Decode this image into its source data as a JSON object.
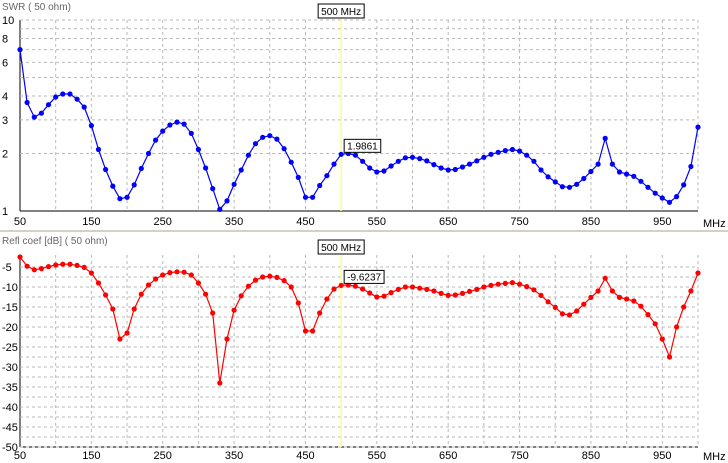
{
  "marker": {
    "label": "500 MHz",
    "x": 500
  },
  "x_unit": "MHz",
  "chart_data": [
    {
      "type": "line",
      "title": "SWR ( 50 ohm)",
      "xlim": [
        50,
        1000
      ],
      "ylim": [
        1,
        10
      ],
      "y_scale": "log",
      "grid": true,
      "color": "#0000ff",
      "x_ticks": [
        50,
        150,
        250,
        350,
        450,
        550,
        650,
        750,
        850,
        950
      ],
      "x_tick_labels": [
        "50",
        "150",
        "250",
        "350",
        "450",
        "550",
        "650",
        "750",
        "850",
        "950"
      ],
      "y_ticks": [
        1,
        2,
        3,
        4,
        6,
        8,
        10
      ],
      "y_tick_labels": [
        "1",
        "2",
        "3",
        "4",
        "6",
        "8",
        "10"
      ],
      "marker_value": "1.9861",
      "x": [
        50,
        60,
        70,
        80,
        90,
        100,
        110,
        120,
        130,
        140,
        150,
        160,
        170,
        180,
        190,
        200,
        210,
        220,
        230,
        240,
        250,
        260,
        270,
        280,
        290,
        300,
        310,
        320,
        330,
        340,
        350,
        360,
        370,
        380,
        390,
        400,
        410,
        420,
        430,
        440,
        450,
        460,
        470,
        480,
        490,
        500,
        510,
        520,
        530,
        540,
        550,
        560,
        570,
        580,
        590,
        600,
        610,
        620,
        630,
        640,
        650,
        660,
        670,
        680,
        690,
        700,
        710,
        720,
        730,
        740,
        750,
        760,
        770,
        780,
        790,
        800,
        810,
        820,
        830,
        840,
        850,
        860,
        870,
        880,
        890,
        900,
        910,
        920,
        930,
        940,
        950,
        960,
        970,
        980,
        990,
        1000
      ],
      "values": [
        7.0,
        3.7,
        3.1,
        3.25,
        3.6,
        3.95,
        4.1,
        4.1,
        3.85,
        3.5,
        2.8,
        2.1,
        1.65,
        1.35,
        1.16,
        1.18,
        1.37,
        1.67,
        2.0,
        2.35,
        2.62,
        2.82,
        2.92,
        2.85,
        2.55,
        2.1,
        1.68,
        1.31,
        1.02,
        1.13,
        1.38,
        1.64,
        1.96,
        2.25,
        2.43,
        2.48,
        2.38,
        2.12,
        1.8,
        1.5,
        1.18,
        1.18,
        1.36,
        1.53,
        1.76,
        1.98,
        2.0,
        1.96,
        1.82,
        1.68,
        1.6,
        1.62,
        1.72,
        1.82,
        1.9,
        1.91,
        1.88,
        1.83,
        1.75,
        1.68,
        1.64,
        1.65,
        1.7,
        1.76,
        1.83,
        1.91,
        1.98,
        2.03,
        2.07,
        2.1,
        2.06,
        1.96,
        1.82,
        1.64,
        1.51,
        1.42,
        1.34,
        1.33,
        1.38,
        1.48,
        1.61,
        1.76,
        2.4,
        1.76,
        1.6,
        1.56,
        1.52,
        1.43,
        1.33,
        1.24,
        1.17,
        1.11,
        1.19,
        1.37,
        1.71,
        2.75
      ]
    },
    {
      "type": "line",
      "title": "Refl coef [dB] ( 50 ohm)",
      "xlim": [
        50,
        1000
      ],
      "ylim": [
        -50,
        -2
      ],
      "grid": true,
      "color": "#ff0000",
      "x_ticks": [
        50,
        150,
        250,
        350,
        450,
        550,
        650,
        750,
        850,
        950
      ],
      "x_tick_labels": [
        "50",
        "150",
        "250",
        "350",
        "450",
        "550",
        "650",
        "750",
        "850",
        "950"
      ],
      "y_ticks": [
        -5,
        -10,
        -15,
        -20,
        -25,
        -30,
        -35,
        -40,
        -45,
        -50
      ],
      "y_tick_labels": [
        "-5",
        "-10",
        "-15",
        "-20",
        "-25",
        "-30",
        "-35",
        "-40",
        "-45",
        "-50"
      ],
      "marker_value": "-9.6237",
      "x": [
        50,
        60,
        70,
        80,
        90,
        100,
        110,
        120,
        130,
        140,
        150,
        160,
        170,
        180,
        190,
        200,
        210,
        220,
        230,
        240,
        250,
        260,
        270,
        280,
        290,
        300,
        310,
        320,
        330,
        340,
        350,
        360,
        370,
        380,
        390,
        400,
        410,
        420,
        430,
        440,
        450,
        460,
        470,
        480,
        490,
        500,
        510,
        520,
        530,
        540,
        550,
        560,
        570,
        580,
        590,
        600,
        610,
        620,
        630,
        640,
        650,
        660,
        670,
        680,
        690,
        700,
        710,
        720,
        730,
        740,
        750,
        760,
        770,
        780,
        790,
        800,
        810,
        820,
        830,
        840,
        850,
        860,
        870,
        880,
        890,
        900,
        910,
        920,
        930,
        940,
        950,
        960,
        970,
        980,
        990,
        1000
      ],
      "values": [
        -2.5,
        -4.8,
        -5.7,
        -5.4,
        -4.9,
        -4.5,
        -4.3,
        -4.3,
        -4.6,
        -5.1,
        -6.5,
        -9.0,
        -12.0,
        -15.5,
        -23.0,
        -21.5,
        -15.5,
        -11.8,
        -9.5,
        -8.0,
        -7.0,
        -6.4,
        -6.2,
        -6.3,
        -7.0,
        -9.0,
        -11.8,
        -16.5,
        -34.0,
        -23.0,
        -15.8,
        -12.2,
        -9.8,
        -8.3,
        -7.5,
        -7.3,
        -7.6,
        -8.4,
        -10.0,
        -14.0,
        -21.0,
        -21.0,
        -16.5,
        -13.0,
        -10.5,
        -9.6,
        -9.5,
        -9.8,
        -10.5,
        -11.5,
        -12.5,
        -12.3,
        -11.4,
        -10.6,
        -10.0,
        -10.0,
        -10.3,
        -10.6,
        -11.0,
        -11.6,
        -12.1,
        -12.0,
        -11.6,
        -11.1,
        -10.6,
        -10.0,
        -9.6,
        -9.3,
        -9.1,
        -8.9,
        -9.3,
        -9.9,
        -10.7,
        -12.1,
        -13.7,
        -15.1,
        -16.7,
        -17.0,
        -16.0,
        -14.3,
        -12.6,
        -11.0,
        -7.8,
        -11.0,
        -12.6,
        -13.0,
        -13.5,
        -14.8,
        -16.9,
        -19.2,
        -23.0,
        -27.5,
        -20.0,
        -15.0,
        -11.0,
        -6.5
      ]
    }
  ]
}
